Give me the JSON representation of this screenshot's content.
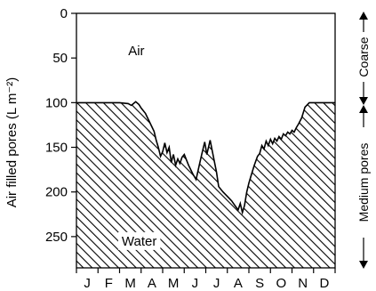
{
  "chart_data": {
    "type": "area",
    "title": "",
    "ylabel": "Air filled pores (L m⁻²)",
    "xlabel": "",
    "ylim": [
      0,
      285
    ],
    "y_inverted": true,
    "y_ticks": [
      0,
      50,
      100,
      150,
      200,
      250
    ],
    "x_range": [
      0,
      12
    ],
    "months": [
      "J",
      "F",
      "M",
      "A",
      "M",
      "J",
      "J",
      "A",
      "S",
      "O",
      "N",
      "D"
    ],
    "series": [
      {
        "fill": "hatched",
        "x": [
          0,
          1,
          2,
          2.4,
          2.55,
          2.75,
          2.9,
          3.0,
          3.2,
          3.4,
          3.6,
          3.7,
          3.8,
          3.9,
          4.0,
          4.1,
          4.2,
          4.3,
          4.4,
          4.5,
          4.6,
          4.7,
          4.8,
          4.9,
          5.0,
          5.2,
          5.4,
          5.55,
          5.7,
          5.8,
          5.95,
          6.05,
          6.2,
          6.35,
          6.5,
          6.6,
          6.8,
          7.0,
          7.2,
          7.35,
          7.5,
          7.6,
          7.7,
          7.8,
          7.9,
          8.0,
          8.1,
          8.25,
          8.4,
          8.5,
          8.6,
          8.7,
          8.8,
          8.9,
          9.0,
          9.1,
          9.2,
          9.3,
          9.4,
          9.5,
          9.6,
          9.7,
          9.8,
          9.9,
          10.0,
          10.1,
          10.2,
          10.3,
          10.45,
          10.6,
          10.8,
          11.0,
          12.0
        ],
        "values": [
          100,
          100,
          100,
          101,
          103,
          99,
          102,
          106,
          112,
          122,
          132,
          142,
          150,
          160,
          155,
          145,
          156,
          150,
          167,
          158,
          170,
          163,
          168,
          161,
          158,
          170,
          180,
          186,
          170,
          159,
          144,
          158,
          142,
          160,
          178,
          194,
          200,
          205,
          210,
          215,
          220,
          213,
          223,
          215,
          200,
          190,
          182,
          170,
          160,
          157,
          148,
          152,
          143,
          148,
          141,
          146,
          140,
          143,
          138,
          141,
          135,
          137,
          133,
          135,
          131,
          133,
          128,
          124,
          117,
          105,
          100,
          100,
          100
        ]
      }
    ],
    "annotations": [
      {
        "text": "Air",
        "x": 2.4,
        "y": 42
      },
      {
        "text": "Water",
        "x": 2.1,
        "y": 255
      }
    ],
    "right_axis": {
      "top_label": "Coarse",
      "bottom_label": "Medium pores"
    }
  }
}
